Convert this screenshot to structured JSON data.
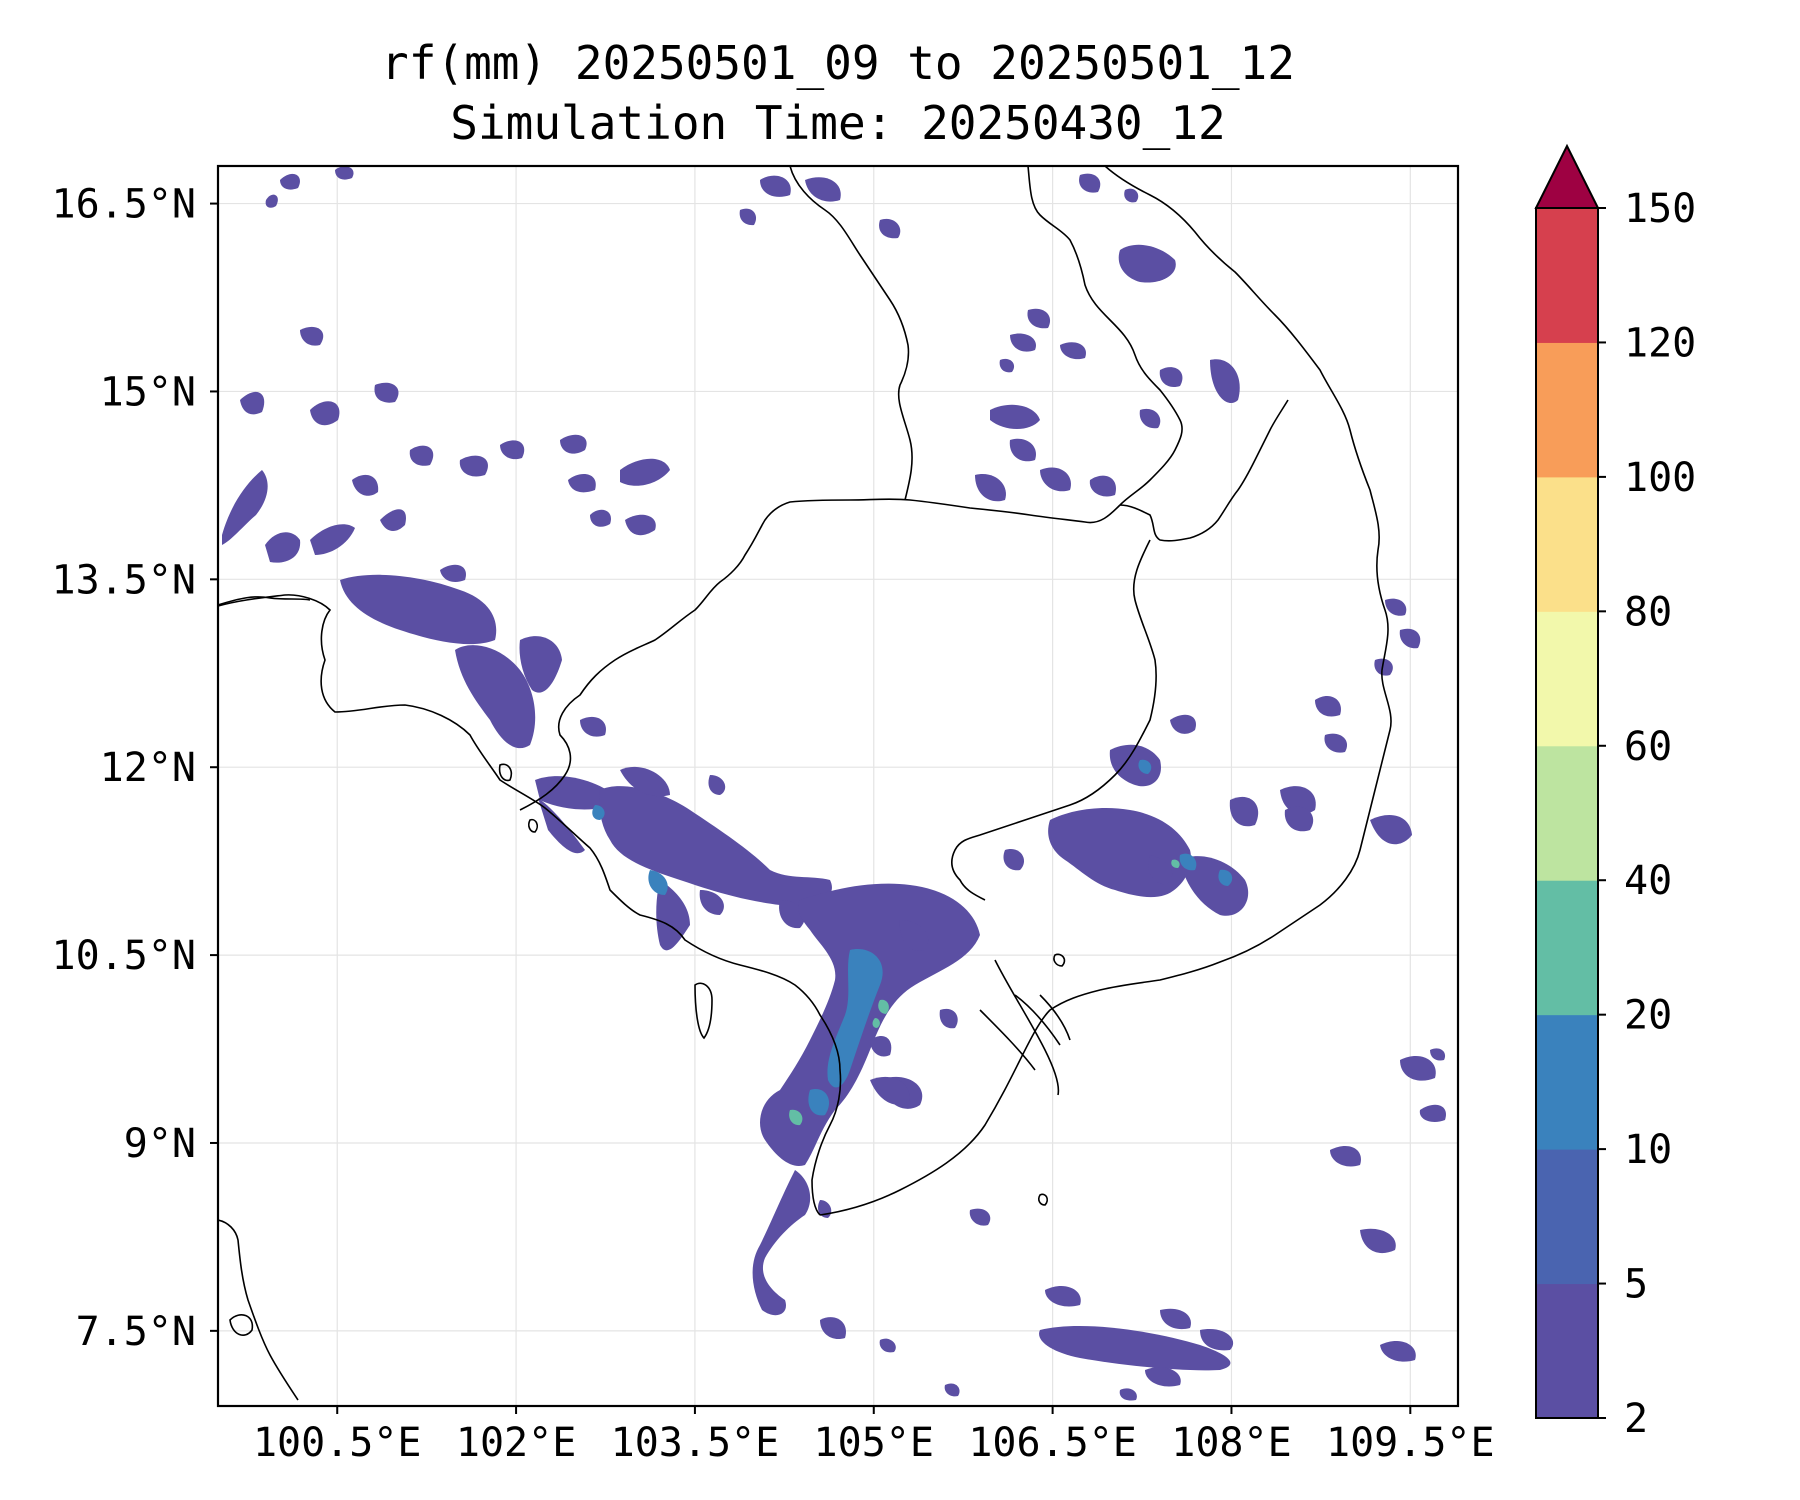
{
  "title": {
    "line1": "rf(mm) 20250501_09 to 20250501_12",
    "line2": "Simulation Time: 20250430_12"
  },
  "map": {
    "lon_range": [
      99.5,
      109.9
    ],
    "lat_range": [
      6.9,
      16.8
    ],
    "lon_ticks": [
      "100.5°E",
      "102°E",
      "103.5°E",
      "105°E",
      "106.5°E",
      "108°E",
      "109.5°E"
    ],
    "lat_ticks": [
      "16.5°N",
      "15°N",
      "13.5°N",
      "12°N",
      "10.5°N",
      "9°N",
      "7.5°N"
    ],
    "grid": true
  },
  "colorbar": {
    "extend": "max",
    "tick_labels": [
      "2",
      "5",
      "10",
      "20",
      "40",
      "60",
      "80",
      "100",
      "120",
      "150"
    ],
    "colors": [
      "#5b4fa3",
      "#4a64b0",
      "#3a82bd",
      "#63bea5",
      "#bde4a0",
      "#f2f8ab",
      "#fbe08a",
      "#f89d59",
      "#d6404e",
      "#9e0142"
    ]
  }
}
